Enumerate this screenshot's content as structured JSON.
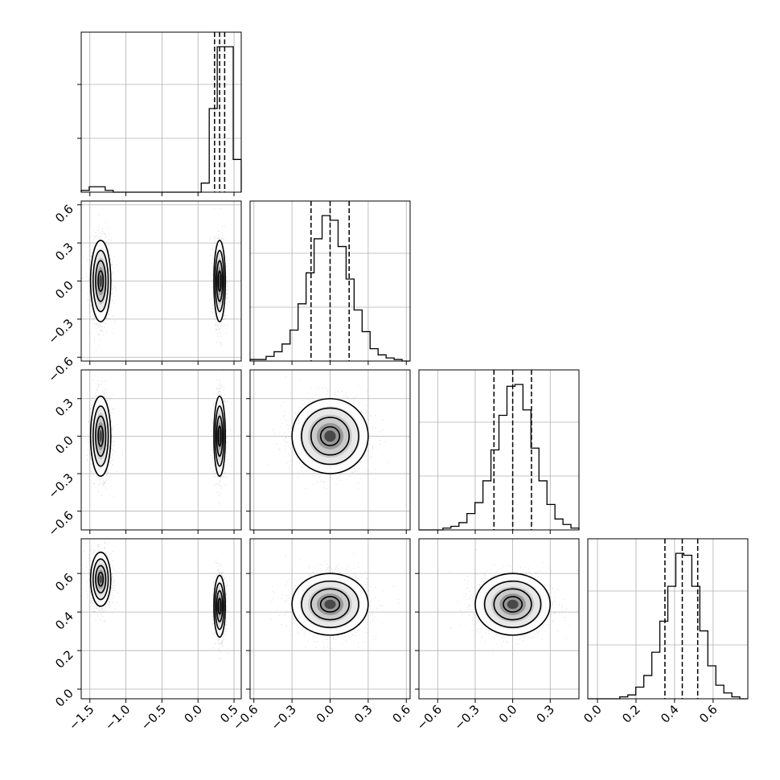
{
  "chart_data": {
    "type": "scatter",
    "variant": "corner-plot",
    "grid": true,
    "dashed_quantile_lines": [
      0.16,
      0.5,
      0.84
    ],
    "colors": {
      "points": "#808080",
      "contours": "#000000",
      "histogram": "#000000",
      "grid": "#b0b0b0"
    },
    "parameters": [
      {
        "range": [
          -1.62,
          0.6
        ],
        "ticks": [
          -1.5,
          -1.0,
          -0.5,
          0.0,
          0.5
        ],
        "tick_labels": [
          "−1.5",
          "−1.0",
          "−0.5",
          "0.0",
          "0.5"
        ],
        "histogram": {
          "bins": [
            -1.62,
            -1.509,
            -1.398,
            -1.287,
            -1.176,
            -1.065,
            -0.954,
            -0.843,
            -0.732,
            -0.621,
            -0.51,
            -0.399,
            -0.288,
            -0.177,
            -0.066,
            0.045,
            0.156,
            0.267,
            0.378,
            0.489,
            0.6
          ],
          "counts": [
            1,
            3,
            3,
            1,
            0,
            0,
            0,
            0,
            0,
            0,
            0,
            0,
            0,
            0,
            0,
            5,
            46,
            80,
            80,
            18
          ]
        },
        "quantiles": [
          0.23,
          0.3,
          0.37
        ]
      },
      {
        "range": [
          -0.63,
          0.63
        ],
        "ticks": [
          -0.6,
          -0.3,
          0.0,
          0.3,
          0.6
        ],
        "tick_labels": [
          "−0.6",
          "−0.3",
          "0.0",
          "0.3",
          "0.6"
        ],
        "histogram": {
          "bins": [
            -0.63,
            -0.567,
            -0.504,
            -0.441,
            -0.378,
            -0.315,
            -0.252,
            -0.189,
            -0.126,
            -0.063,
            0.0,
            0.063,
            0.126,
            0.189,
            0.252,
            0.315,
            0.378,
            0.441,
            0.504,
            0.567,
            0.63
          ],
          "counts": [
            1,
            1,
            3,
            6,
            11,
            20,
            37,
            57,
            79,
            94,
            91,
            74,
            53,
            33,
            19,
            8,
            4,
            2,
            1,
            0
          ]
        },
        "quantiles": [
          -0.15,
          0.0,
          0.15
        ]
      },
      {
        "range": [
          -0.75,
          0.53
        ],
        "ticks": [
          -0.6,
          -0.3,
          0.0,
          0.3
        ],
        "tick_labels": [
          "−0.6",
          "−0.3",
          "0.0",
          "0.3"
        ],
        "histogram": {
          "bins": [
            -0.75,
            -0.686,
            -0.622,
            -0.558,
            -0.494,
            -0.43,
            -0.366,
            -0.302,
            -0.238,
            -0.174,
            -0.11,
            -0.046,
            0.018,
            0.082,
            0.146,
            0.21,
            0.274,
            0.338,
            0.402,
            0.466,
            0.53
          ],
          "counts": [
            0,
            0,
            0,
            1,
            2,
            4,
            9,
            15,
            27,
            44,
            63,
            79,
            80,
            66,
            45,
            27,
            14,
            6,
            3,
            1
          ]
        },
        "quantiles": [
          -0.15,
          0.0,
          0.15
        ]
      },
      {
        "range": [
          -0.05,
          0.78
        ],
        "ticks": [
          0.0,
          0.2,
          0.4,
          0.6
        ],
        "tick_labels": [
          "0.0",
          "0.2",
          "0.4",
          "0.6"
        ],
        "histogram": {
          "bins": [
            -0.05,
            -0.0085,
            0.033,
            0.0745,
            0.116,
            0.1575,
            0.199,
            0.2405,
            0.282,
            0.3235,
            0.365,
            0.4065,
            0.448,
            0.4895,
            0.531,
            0.5725,
            0.614,
            0.6555,
            0.697,
            0.7385,
            0.78
          ],
          "counts": [
            0,
            0,
            0,
            0,
            1,
            2,
            6,
            12,
            24,
            40,
            58,
            75,
            74,
            58,
            35,
            17,
            7,
            3,
            1,
            0
          ]
        },
        "quantiles": [
          0.35,
          0.44,
          0.52
        ]
      }
    ],
    "pair_plots": [
      {
        "x_param": 0,
        "y_param": 1,
        "clusters": [
          {
            "mean": [
              -1.35,
              0.0
            ],
            "sd": [
              0.07,
              0.16
            ]
          },
          {
            "mean": [
              0.3,
              0.0
            ],
            "sd": [
              0.04,
              0.16
            ]
          }
        ]
      },
      {
        "x_param": 0,
        "y_param": 2,
        "clusters": [
          {
            "mean": [
              -1.35,
              0.0
            ],
            "sd": [
              0.07,
              0.16
            ]
          },
          {
            "mean": [
              0.3,
              0.0
            ],
            "sd": [
              0.04,
              0.16
            ]
          }
        ]
      },
      {
        "x_param": 1,
        "y_param": 2,
        "clusters": [
          {
            "mean": [
              0.0,
              0.0
            ],
            "sd": [
              0.15,
              0.15
            ]
          }
        ]
      },
      {
        "x_param": 0,
        "y_param": 3,
        "clusters": [
          {
            "mean": [
              -1.35,
              0.57
            ],
            "sd": [
              0.07,
              0.07
            ]
          },
          {
            "mean": [
              0.3,
              0.43
            ],
            "sd": [
              0.04,
              0.08
            ]
          }
        ]
      },
      {
        "x_param": 1,
        "y_param": 3,
        "clusters": [
          {
            "mean": [
              0.0,
              0.44
            ],
            "sd": [
              0.15,
              0.08
            ]
          }
        ]
      },
      {
        "x_param": 2,
        "y_param": 3,
        "clusters": [
          {
            "mean": [
              0.0,
              0.44
            ],
            "sd": [
              0.15,
              0.08
            ]
          }
        ]
      }
    ]
  }
}
